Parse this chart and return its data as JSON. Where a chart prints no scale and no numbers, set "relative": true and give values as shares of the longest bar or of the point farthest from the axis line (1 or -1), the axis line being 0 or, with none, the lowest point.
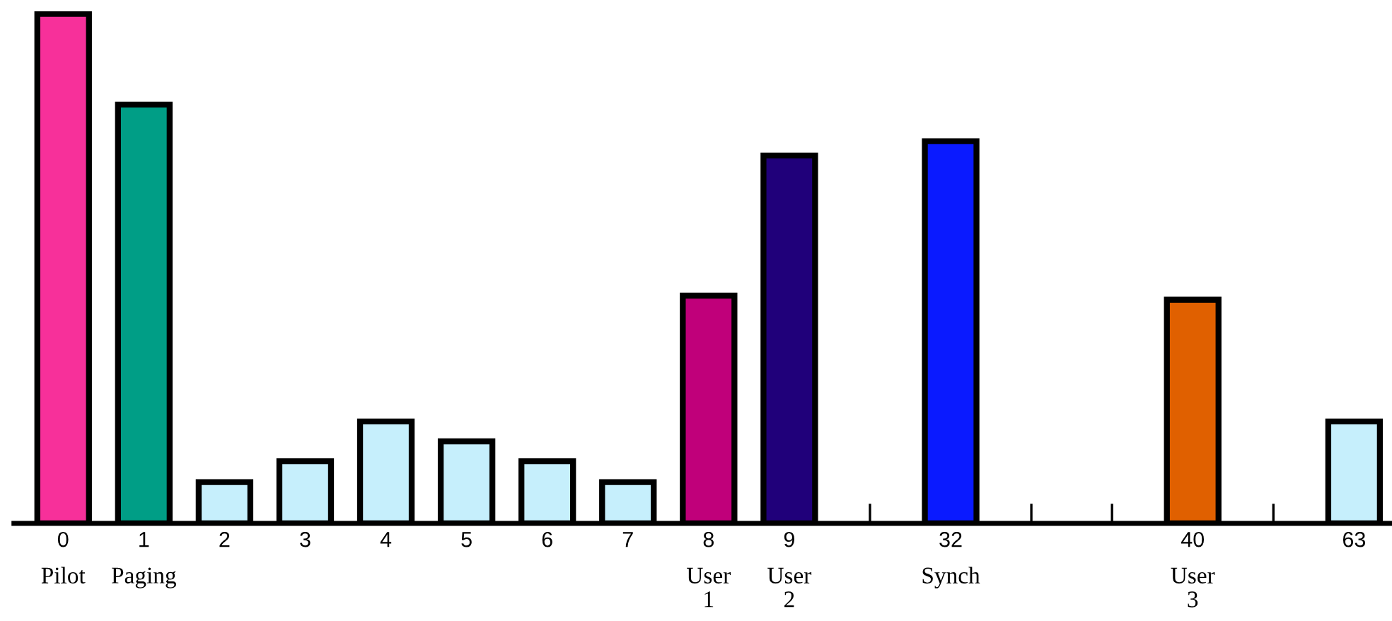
{
  "chart_data": {
    "type": "bar",
    "relative": true,
    "categories": [
      "0\nPilot",
      "1\nPaging",
      "2",
      "3",
      "4",
      "5",
      "6",
      "7",
      "8\nUser\n1",
      "9\nUser\n2",
      null,
      "32\nSynch",
      null,
      null,
      "40\nUser\n3",
      null,
      "63"
    ],
    "values": [
      1,
      0.822,
      0.081,
      0.122,
      0.2,
      0.161,
      0.122,
      0.081,
      0.447,
      0.722,
      null,
      0.75,
      null,
      null,
      0.439,
      null,
      0.2
    ],
    "colors": [
      "#f7309a",
      "#009e86",
      "#c6effc",
      "#c6effc",
      "#c6effc",
      "#c6effc",
      "#c6effc",
      "#c6effc",
      "#c0007a",
      "#20007a",
      null,
      "#0a1aff",
      null,
      null,
      "#e06000",
      null,
      "#c6effc"
    ],
    "grid": false,
    "legend": false
  }
}
